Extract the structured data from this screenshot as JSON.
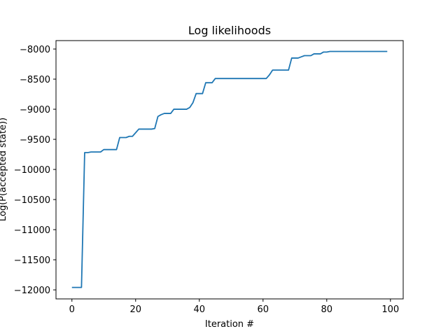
{
  "chart_data": {
    "type": "line",
    "title": "Log likelihoods",
    "xlabel": "Iteration #",
    "ylabel": "Log(P(accepted state))",
    "xlim": [
      -5,
      104
    ],
    "ylim": [
      -12150,
      -7860
    ],
    "xticks": [
      0,
      20,
      40,
      60,
      80,
      100
    ],
    "yticks": [
      -8000,
      -8500,
      -9000,
      -9500,
      -10000,
      -10500,
      -11000,
      -11500,
      -12000
    ],
    "grid": false,
    "series": [
      {
        "color": "#1f77b4",
        "x": [
          0,
          1,
          2,
          3,
          4,
          5,
          6,
          7,
          8,
          9,
          10,
          11,
          12,
          13,
          14,
          15,
          16,
          17,
          18,
          19,
          20,
          21,
          22,
          23,
          24,
          25,
          26,
          27,
          28,
          29,
          30,
          31,
          32,
          33,
          34,
          35,
          36,
          37,
          38,
          39,
          40,
          41,
          42,
          43,
          44,
          45,
          46,
          47,
          48,
          49,
          50,
          51,
          52,
          53,
          54,
          55,
          56,
          57,
          58,
          59,
          60,
          61,
          62,
          63,
          64,
          65,
          66,
          67,
          68,
          69,
          70,
          71,
          72,
          73,
          74,
          75,
          76,
          77,
          78,
          79,
          80,
          81,
          82,
          83,
          84,
          85,
          86,
          87,
          88,
          89,
          90,
          91,
          92,
          93,
          94,
          95,
          96,
          97,
          98,
          99
        ],
        "y": [
          -11960,
          -11960,
          -11960,
          -11960,
          -9720,
          -9720,
          -9710,
          -9710,
          -9710,
          -9710,
          -9670,
          -9670,
          -9670,
          -9670,
          -9670,
          -9470,
          -9470,
          -9470,
          -9450,
          -9450,
          -9390,
          -9330,
          -9330,
          -9330,
          -9330,
          -9330,
          -9320,
          -9120,
          -9090,
          -9070,
          -9070,
          -9070,
          -9000,
          -9000,
          -9000,
          -9000,
          -9000,
          -8970,
          -8890,
          -8740,
          -8740,
          -8740,
          -8560,
          -8560,
          -8560,
          -8490,
          -8490,
          -8490,
          -8490,
          -8490,
          -8490,
          -8490,
          -8490,
          -8490,
          -8490,
          -8490,
          -8490,
          -8490,
          -8490,
          -8490,
          -8490,
          -8490,
          -8430,
          -8350,
          -8350,
          -8350,
          -8350,
          -8350,
          -8350,
          -8150,
          -8150,
          -8150,
          -8130,
          -8110,
          -8110,
          -8110,
          -8080,
          -8080,
          -8080,
          -8050,
          -8050,
          -8040,
          -8040,
          -8040,
          -8040,
          -8040,
          -8040,
          -8040,
          -8040,
          -8040,
          -8040,
          -8040,
          -8040,
          -8040,
          -8040,
          -8040,
          -8040,
          -8040,
          -8040,
          -8040
        ]
      }
    ]
  }
}
